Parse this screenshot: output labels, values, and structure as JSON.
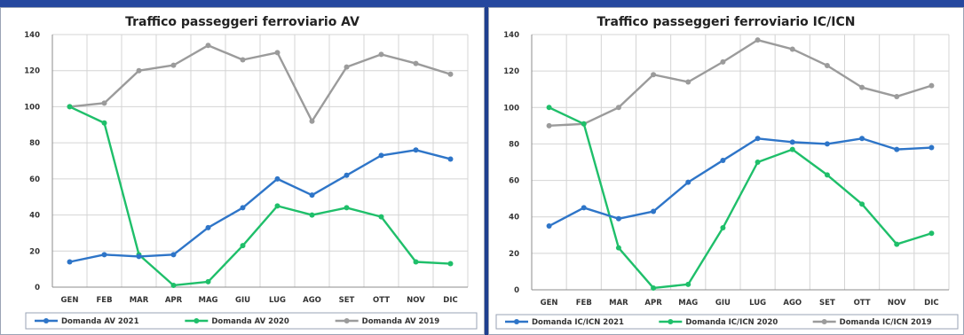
{
  "chart_data": [
    {
      "type": "line",
      "title": "Traffico passeggeri ferroviario AV",
      "categories": [
        "GEN",
        "FEB",
        "MAR",
        "APR",
        "MAG",
        "GIU",
        "LUG",
        "AGO",
        "SET",
        "OTT",
        "NOV",
        "DIC"
      ],
      "ylim": [
        0,
        140
      ],
      "yticks": [
        0,
        20,
        40,
        60,
        80,
        100,
        120,
        140
      ],
      "grid": true,
      "legend_position": "bottom",
      "series": [
        {
          "name": "Domanda AV 2021",
          "color": "#2e75c8",
          "values": [
            14,
            18,
            17,
            18,
            33,
            44,
            60,
            51,
            62,
            73,
            76,
            71
          ]
        },
        {
          "name": "Domanda AV 2020",
          "color": "#1fbf6a",
          "values": [
            100,
            91,
            18,
            1,
            3,
            23,
            45,
            40,
            44,
            39,
            14,
            13
          ]
        },
        {
          "name": "Domanda AV 2019",
          "color": "#9b9b9b",
          "values": [
            100,
            102,
            120,
            123,
            134,
            126,
            130,
            92,
            122,
            129,
            124,
            118
          ]
        }
      ]
    },
    {
      "type": "line",
      "title": "Traffico passeggeri ferroviario IC/ICN",
      "categories": [
        "GEN",
        "FEB",
        "MAR",
        "APR",
        "MAG",
        "GIU",
        "LUG",
        "AGO",
        "SET",
        "OTT",
        "NOV",
        "DIC"
      ],
      "ylim": [
        0,
        140
      ],
      "yticks": [
        0,
        20,
        40,
        60,
        80,
        100,
        120,
        140
      ],
      "grid": true,
      "legend_position": "bottom",
      "series": [
        {
          "name": "Domanda IC/ICN 2021",
          "color": "#2e75c8",
          "values": [
            35,
            45,
            39,
            43,
            59,
            71,
            83,
            81,
            80,
            83,
            77,
            78
          ]
        },
        {
          "name": "Domanda IC/ICN 2020",
          "color": "#1fbf6a",
          "values": [
            100,
            91,
            23,
            1,
            3,
            34,
            70,
            77,
            63,
            47,
            25,
            31
          ]
        },
        {
          "name": "Domanda IC/ICN 2019",
          "color": "#9b9b9b",
          "values": [
            90,
            91,
            100,
            118,
            114,
            125,
            137,
            132,
            123,
            111,
            106,
            112
          ]
        }
      ]
    }
  ]
}
